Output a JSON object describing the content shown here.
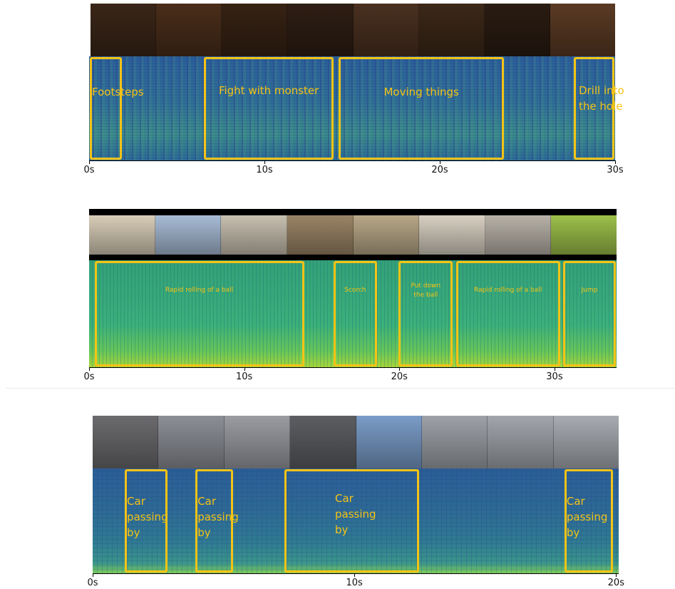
{
  "panels": [
    {
      "id": "game",
      "ticks": [
        "0s",
        "10s",
        "20s",
        "30s"
      ],
      "tick_values": [
        0,
        10,
        20,
        30
      ],
      "duration": 30,
      "frames": [
        "#3a2618",
        "#4a2e1a",
        "#362214",
        "#2e1e14",
        "#4a3020",
        "#3c2818",
        "#2a1c12",
        "#5a3a24"
      ],
      "events": [
        {
          "label": "Footsteps",
          "start": 0.0,
          "end": 1.9
        },
        {
          "label": "Fight with monster",
          "start": 6.5,
          "end": 14.0
        },
        {
          "label": "Moving things",
          "start": 14.2,
          "end": 23.7
        },
        {
          "label": "Drill into\nthe hole",
          "start": 27.6,
          "end": 30.0
        }
      ]
    },
    {
      "id": "ball",
      "ticks": [
        "0s",
        "10s",
        "20s",
        "30s"
      ],
      "tick_values": [
        0,
        10,
        20,
        30
      ],
      "duration": 34.0,
      "frames": [
        "#d8cdb8",
        "#a8bcd6",
        "#c8c0b0",
        "#9a8466",
        "#b8a888",
        "#d8d0c2",
        "#b8b2a8",
        "#9cc04a"
      ],
      "events": [
        {
          "label": "Rapid rolling of a ball",
          "start": 0.3,
          "end": 13.9
        },
        {
          "label": "Scorch",
          "start": 15.7,
          "end": 18.6
        },
        {
          "label": "Put down\nthe ball",
          "start": 19.9,
          "end": 23.5
        },
        {
          "label": "Rapid rolling of a ball",
          "start": 23.6,
          "end": 30.4
        },
        {
          "label": "Jump",
          "start": 30.5,
          "end": 34.0
        }
      ]
    },
    {
      "id": "car",
      "ticks": [
        "0s",
        "10s",
        "20s"
      ],
      "tick_values": [
        0,
        10,
        20
      ],
      "duration": 20.1,
      "frames": [
        "#6b6b6e",
        "#8c8f96",
        "#9a9ca2",
        "#5c5e62",
        "#7a9cc8",
        "#9ea2a8",
        "#a2a6ac",
        "#a8acb2"
      ],
      "events": [
        {
          "label": "Car\npassing\nby",
          "start": 1.2,
          "end": 2.9
        },
        {
          "label": "Car\npassing\nby",
          "start": 3.9,
          "end": 5.4
        },
        {
          "label": "Car\npassing\nby",
          "start": 7.3,
          "end": 12.5
        },
        {
          "label": "Car\npassing\nby",
          "start": 18.0,
          "end": 19.9
        }
      ]
    }
  ]
}
